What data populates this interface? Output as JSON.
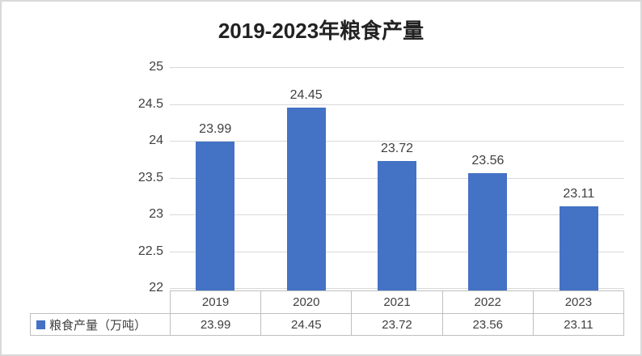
{
  "chart_data": {
    "type": "bar",
    "title": "2019-2023年粮食产量",
    "categories": [
      "2019",
      "2020",
      "2021",
      "2022",
      "2023"
    ],
    "series": [
      {
        "name": "粮食产量（万吨）",
        "values": [
          23.99,
          24.45,
          23.72,
          23.56,
          23.11
        ]
      }
    ],
    "value_labels": [
      "23.99",
      "24.45",
      "23.72",
      "23.56",
      "23.11"
    ],
    "xlabel": "",
    "ylabel": "",
    "ylim": [
      22,
      25
    ],
    "ytick_step": 0.5,
    "ytick_labels": [
      "25",
      "24.5",
      "24",
      "23.5",
      "23",
      "22.5",
      "22"
    ],
    "grid": true,
    "legend_position": "bottom-left-data-table",
    "colors": {
      "bar": "#4472c4",
      "gridline": "#d9d9d9",
      "table_border": "#bfbfbf",
      "label_text": "#404040",
      "title_text": "#222222",
      "frame_border": "#d9d9d9",
      "background": "#ffffff"
    }
  }
}
